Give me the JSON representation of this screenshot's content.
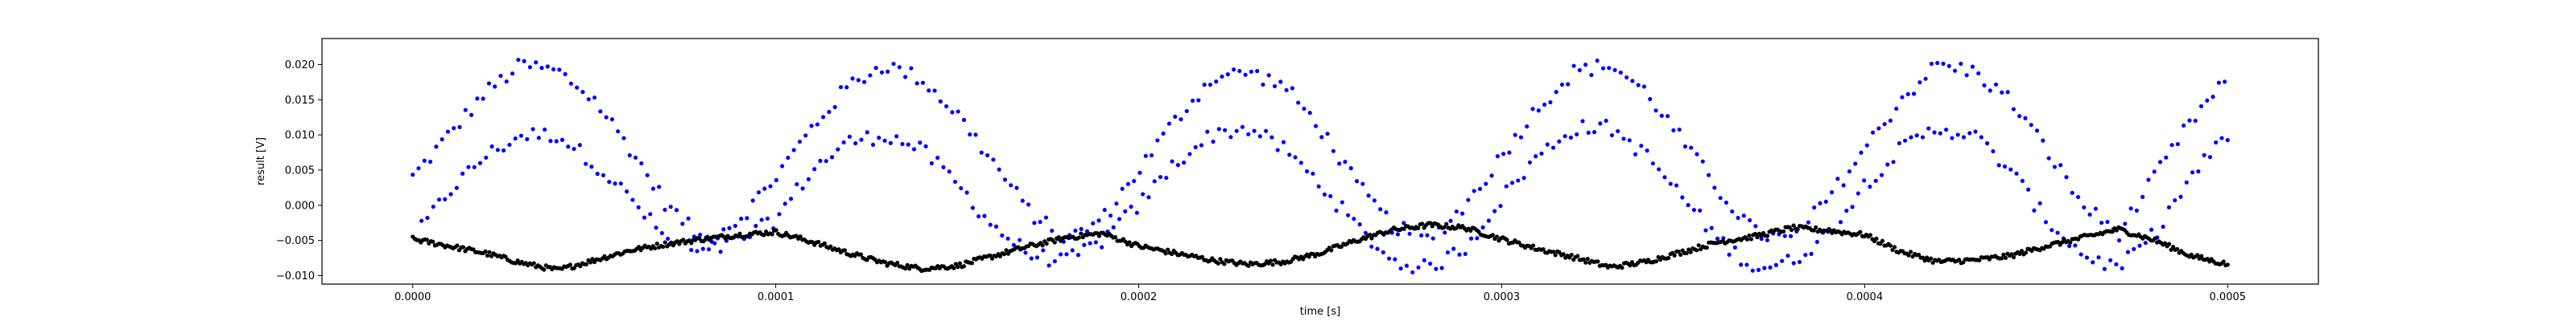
{
  "chart_data": {
    "type": "scatter",
    "title": "",
    "xlabel": "time [s]",
    "ylabel": "result [V]",
    "xlim": [
      -2.5e-05,
      0.000525
    ],
    "ylim": [
      -0.0112,
      0.0237
    ],
    "x_ticks": [
      0.0,
      0.0001,
      0.0002,
      0.0003,
      0.0004,
      0.0005
    ],
    "x_tick_labels": [
      "0.0000",
      "0.0001",
      "0.0002",
      "0.0003",
      "0.0004",
      "0.0005"
    ],
    "y_ticks": [
      -0.01,
      -0.005,
      0.0,
      0.005,
      0.01,
      0.015,
      0.02
    ],
    "y_tick_labels": [
      "−0.010",
      "−0.005",
      "0.000",
      "0.005",
      "0.010",
      "0.015",
      "0.020"
    ],
    "grid": false,
    "legend": "none",
    "series": [
      {
        "color": "#0000ff",
        "marker": "dot",
        "x": [
          0.0,
          1e-05,
          2e-05,
          3e-05,
          4e-05,
          5e-05,
          6e-05,
          7e-05,
          8e-05,
          9e-05,
          0.0001,
          0.00011,
          0.00012,
          0.00013,
          0.00014,
          0.00015,
          0.00016,
          0.00017,
          0.00018,
          0.00019,
          0.0002,
          0.00021,
          0.00022,
          0.00023,
          0.00024,
          0.00025,
          0.00026,
          0.00027,
          0.00028,
          0.00029,
          0.0003,
          0.00031,
          0.00032,
          0.00033,
          0.00034,
          0.00035,
          0.00036,
          0.00037,
          0.00038,
          0.00039,
          0.0004,
          0.00041,
          0.00042,
          0.00043,
          0.00044,
          0.00045,
          0.00046,
          0.00047,
          0.00048,
          0.00049,
          0.0005
        ],
        "upper": [
          0.004,
          0.01,
          0.016,
          0.02,
          0.019,
          0.015,
          0.008,
          0.0,
          -0.005,
          -0.002,
          0.004,
          0.011,
          0.017,
          0.02,
          0.018,
          0.013,
          0.006,
          -0.001,
          -0.005,
          -0.002,
          0.005,
          0.012,
          0.018,
          0.019,
          0.017,
          0.011,
          0.003,
          -0.003,
          -0.005,
          0.0,
          0.007,
          0.014,
          0.019,
          0.02,
          0.016,
          0.009,
          0.002,
          -0.004,
          -0.005,
          0.001,
          0.008,
          0.015,
          0.02,
          0.019,
          0.015,
          0.008,
          0.0,
          -0.004,
          0.004,
          0.012,
          0.018
        ],
        "lower": [
          -0.005,
          0.002,
          0.007,
          0.01,
          0.01,
          0.006,
          0.001,
          -0.005,
          -0.007,
          -0.005,
          -0.002,
          0.005,
          0.009,
          0.01,
          0.008,
          0.003,
          -0.003,
          -0.007,
          -0.008,
          -0.005,
          0.0,
          0.006,
          0.01,
          0.011,
          0.008,
          0.003,
          -0.003,
          -0.008,
          -0.009,
          -0.006,
          0.001,
          0.007,
          0.011,
          0.011,
          0.007,
          0.001,
          -0.005,
          -0.009,
          -0.008,
          -0.004,
          0.003,
          0.008,
          0.011,
          0.01,
          0.005,
          -0.002,
          -0.007,
          -0.009,
          -0.004,
          0.004,
          0.01
        ]
      },
      {
        "color": "#000000",
        "marker": "dot",
        "x": [
          0.0,
          1e-05,
          2e-05,
          3e-05,
          4e-05,
          5e-05,
          6e-05,
          7e-05,
          8e-05,
          9e-05,
          0.0001,
          0.00011,
          0.00012,
          0.00013,
          0.00014,
          0.00015,
          0.00016,
          0.00017,
          0.00018,
          0.00019,
          0.0002,
          0.00021,
          0.00022,
          0.00023,
          0.00024,
          0.00025,
          0.00026,
          0.00027,
          0.00028,
          0.00029,
          0.0003,
          0.00031,
          0.00032,
          0.00033,
          0.00034,
          0.00035,
          0.00036,
          0.00037,
          0.00038,
          0.00039,
          0.0004,
          0.00041,
          0.00042,
          0.00043,
          0.00044,
          0.00045,
          0.00046,
          0.00047,
          0.00048,
          0.00049,
          0.0005
        ],
        "y": [
          -0.0048,
          -0.0058,
          -0.0068,
          -0.0082,
          -0.0092,
          -0.0078,
          -0.0064,
          -0.0055,
          -0.0048,
          -0.0042,
          -0.0038,
          -0.0052,
          -0.0068,
          -0.0082,
          -0.009,
          -0.0086,
          -0.0072,
          -0.0058,
          -0.0046,
          -0.004,
          -0.0058,
          -0.0068,
          -0.0078,
          -0.0084,
          -0.008,
          -0.0068,
          -0.005,
          -0.0035,
          -0.0028,
          -0.0032,
          -0.0048,
          -0.0062,
          -0.0074,
          -0.0088,
          -0.008,
          -0.0066,
          -0.0052,
          -0.0044,
          -0.0032,
          -0.0036,
          -0.0042,
          -0.0066,
          -0.008,
          -0.0078,
          -0.0072,
          -0.0058,
          -0.0046,
          -0.0034,
          -0.005,
          -0.0072,
          -0.0084
        ]
      }
    ]
  }
}
